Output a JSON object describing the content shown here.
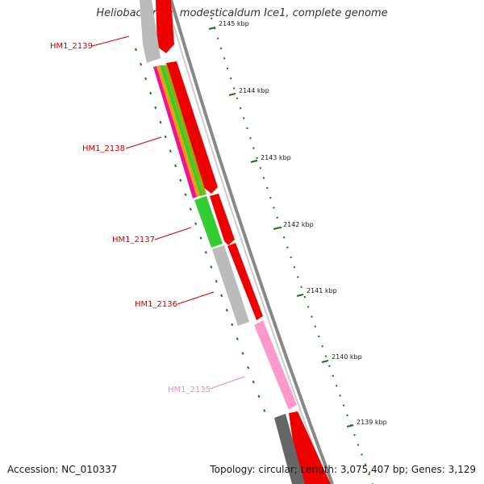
{
  "title": "Heliobacterium modesticaldum Ice1, complete genome",
  "footer": {
    "accession": "Accession: NC_010337",
    "summary": "Topology: circular; Length: 3,075,407 bp; Genes: 3,129"
  },
  "scale": {
    "unit": "kbp",
    "ticks": [
      {
        "label": "2145 kbp"
      },
      {
        "label": "2144 kbp"
      },
      {
        "label": "2143 kbp"
      },
      {
        "label": "2142 kbp"
      },
      {
        "label": "2141 kbp"
      },
      {
        "label": "2140 kbp"
      },
      {
        "label": "2139 kbp"
      }
    ]
  },
  "genes": [
    {
      "label": "HM1_2139",
      "color": "#cc0000"
    },
    {
      "label": "HM1_2138",
      "color": "#cc0000"
    },
    {
      "label": "HM1_2137",
      "color": "#cc0000"
    },
    {
      "label": "HM1_2136",
      "color": "#cc0000"
    },
    {
      "label": "HM1_2135",
      "color": "#ee88bb"
    }
  ],
  "colors": {
    "cds": "#ee0000",
    "gene_inner": "#bbbbbb",
    "gene_dark": "#666666",
    "pseudo_pink": "#ff99cc",
    "green": "#33cc33",
    "backbone": "#888888",
    "tick": "#117711"
  }
}
